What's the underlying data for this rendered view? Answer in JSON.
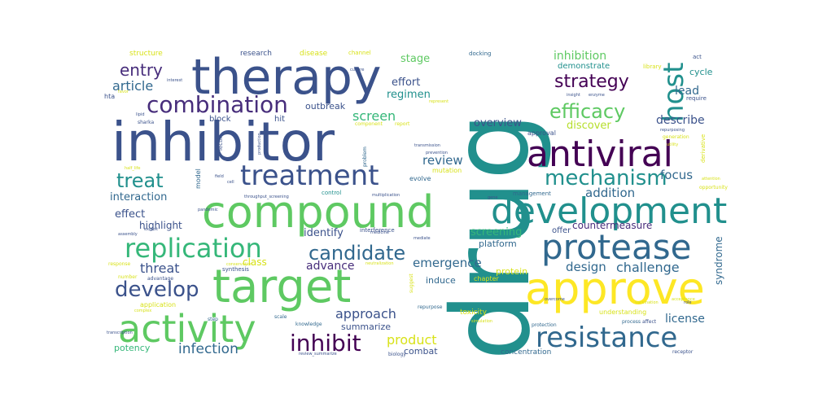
{
  "words": [
    {
      "text": "drug",
      "color": "#21908d",
      "vertical": true
    },
    {
      "text": "inhibitor",
      "color": "#3b528b"
    },
    {
      "text": "therapy",
      "color": "#3b528b"
    },
    {
      "text": "target",
      "color": "#5ec962"
    },
    {
      "text": "compound",
      "color": "#5ec962"
    },
    {
      "text": "development",
      "color": "#21908d"
    },
    {
      "text": "approve",
      "color": "#fde725"
    },
    {
      "text": "activity",
      "color": "#5ec962"
    },
    {
      "text": "antiviral",
      "color": "#440154"
    },
    {
      "text": "protease",
      "color": "#31688e"
    },
    {
      "text": "resistance",
      "color": "#31688e"
    },
    {
      "text": "treatment",
      "color": "#3b528b"
    },
    {
      "text": "replication",
      "color": "#35b779"
    },
    {
      "text": "combination",
      "color": "#472d7b"
    },
    {
      "text": "mechanism",
      "color": "#21908d"
    },
    {
      "text": "host",
      "color": "#21908d",
      "vertical": true
    },
    {
      "text": "strategy",
      "color": "#440154"
    },
    {
      "text": "efficacy",
      "color": "#5ec962"
    },
    {
      "text": "inhibit",
      "color": "#440154"
    },
    {
      "text": "candidate",
      "color": "#31688e"
    },
    {
      "text": "develop",
      "color": "#3b528b"
    },
    {
      "text": "treat",
      "color": "#21908d"
    },
    {
      "text": "entry",
      "color": "#472d7b"
    },
    {
      "text": "article",
      "color": "#31688e"
    },
    {
      "text": "review",
      "color": "#31688e"
    },
    {
      "text": "screen",
      "color": "#35b779"
    },
    {
      "text": "infection",
      "color": "#31688e"
    },
    {
      "text": "product",
      "color": "#d8e219"
    },
    {
      "text": "approach",
      "color": "#3b528b"
    },
    {
      "text": "emergence",
      "color": "#31688e"
    },
    {
      "text": "challenge",
      "color": "#31688e"
    },
    {
      "text": "design",
      "color": "#31688e"
    },
    {
      "text": "advance",
      "color": "#472d7b"
    },
    {
      "text": "threat",
      "color": "#3b528b"
    },
    {
      "text": "addition",
      "color": "#31688e"
    },
    {
      "text": "focus",
      "color": "#31688e"
    },
    {
      "text": "describe",
      "color": "#3b528b"
    },
    {
      "text": "lead",
      "color": "#31688e"
    },
    {
      "text": "license",
      "color": "#31688e"
    },
    {
      "text": "overview",
      "color": "#3b528b"
    },
    {
      "text": "discover",
      "color": "#b5de2b"
    },
    {
      "text": "effort",
      "color": "#3b528b"
    },
    {
      "text": "regimen",
      "color": "#21908d"
    },
    {
      "text": "stage",
      "color": "#5ec962"
    },
    {
      "text": "inhibition",
      "color": "#5ec962"
    },
    {
      "text": "interaction",
      "color": "#31688e"
    },
    {
      "text": "effect",
      "color": "#3b528b"
    },
    {
      "text": "highlight",
      "color": "#3b528b"
    },
    {
      "text": "identify",
      "color": "#3b528b"
    },
    {
      "text": "class",
      "color": "#d8e219"
    },
    {
      "text": "screening",
      "color": "#35b779"
    },
    {
      "text": "countermeasure",
      "color": "#472d7b"
    },
    {
      "text": "syndrome",
      "color": "#31688e",
      "vertical": true
    },
    {
      "text": "potency",
      "color": "#35b779"
    },
    {
      "text": "summarize",
      "color": "#3b528b"
    },
    {
      "text": "combat",
      "color": "#3b528b"
    },
    {
      "text": "induce",
      "color": "#31688e"
    },
    {
      "text": "protein",
      "color": "#d8e219"
    },
    {
      "text": "platform",
      "color": "#31688e"
    },
    {
      "text": "outbreak",
      "color": "#3b528b"
    },
    {
      "text": "cycle",
      "color": "#21908d"
    },
    {
      "text": "demonstrate",
      "color": "#21908d"
    },
    {
      "text": "offer",
      "color": "#3b528b"
    },
    {
      "text": "block",
      "color": "#3b528b"
    },
    {
      "text": "hit",
      "color": "#3b528b"
    },
    {
      "text": "structure",
      "color": "#d8e219"
    },
    {
      "text": "research",
      "color": "#3b528b"
    },
    {
      "text": "disease",
      "color": "#d8e219"
    },
    {
      "text": "channel",
      "color": "#d8e219"
    },
    {
      "text": "docking",
      "color": "#31688e"
    },
    {
      "text": "act",
      "color": "#3b528b"
    },
    {
      "text": "concentration",
      "color": "#31688e"
    },
    {
      "text": "approval",
      "color": "#3b528b"
    },
    {
      "text": "toxicity",
      "color": "#d8e219"
    },
    {
      "text": "mutation",
      "color": "#d8e219"
    },
    {
      "text": "evolve",
      "color": "#31688e"
    },
    {
      "text": "model",
      "color": "#31688e",
      "vertical": true
    },
    {
      "text": "control",
      "color": "#21908d"
    },
    {
      "text": "understanding",
      "color": "#d8e219"
    },
    {
      "text": "chapter",
      "color": "#d8e219"
    },
    {
      "text": "application",
      "color": "#d8e219"
    },
    {
      "text": "hta",
      "color": "#3b528b"
    },
    {
      "text": "management",
      "color": "#31688e"
    },
    {
      "text": "require",
      "color": "#3b528b"
    },
    {
      "text": "library",
      "color": "#d8e219"
    },
    {
      "text": "derivative",
      "color": "#d8e219",
      "vertical": true
    },
    {
      "text": "synthesis",
      "color": "#3b528b"
    },
    {
      "text": "interference",
      "color": "#3b528b"
    },
    {
      "text": "component",
      "color": "#d8e219"
    },
    {
      "text": "report",
      "color": "#d8e219"
    },
    {
      "text": "problem",
      "color": "#31688e",
      "vertical": true
    },
    {
      "text": "suggest",
      "color": "#d8e219",
      "vertical": true
    },
    {
      "text": "scale",
      "color": "#31688e"
    },
    {
      "text": "step",
      "color": "#31688e"
    },
    {
      "text": "knowledge",
      "color": "#31688e"
    },
    {
      "text": "repurpose",
      "color": "#31688e"
    },
    {
      "text": "biology",
      "color": "#3b528b"
    },
    {
      "text": "protection",
      "color": "#31688e"
    },
    {
      "text": "process",
      "color": "#31688e"
    },
    {
      "text": "affect",
      "color": "#3b528b"
    },
    {
      "text": "receptor",
      "color": "#3b528b"
    },
    {
      "text": "opportunity",
      "color": "#d8e219"
    },
    {
      "text": "generation",
      "color": "#d8e219"
    },
    {
      "text": "number",
      "color": "#d8e219"
    },
    {
      "text": "response",
      "color": "#d8e219"
    },
    {
      "text": "advantage",
      "color": "#3b528b"
    },
    {
      "text": "exhibit",
      "color": "#3b528b"
    },
    {
      "text": "assembly",
      "color": "#3b528b"
    },
    {
      "text": "pandemic",
      "color": "#3b528b"
    },
    {
      "text": "medicine",
      "color": "#3b528b"
    },
    {
      "text": "mediate",
      "color": "#3b528b"
    },
    {
      "text": "multiplication",
      "color": "#3b528b"
    },
    {
      "text": "throughput_screening",
      "color": "#3b528b"
    },
    {
      "text": "field",
      "color": "#3b528b"
    },
    {
      "text": "cell",
      "color": "#3b528b"
    },
    {
      "text": "lectin",
      "color": "#3b528b",
      "vertical": true
    },
    {
      "text": "production",
      "color": "#3b528b",
      "vertical": true
    },
    {
      "text": "prevention",
      "color": "#3b528b"
    },
    {
      "text": "utility",
      "color": "#d8e219"
    },
    {
      "text": "attention",
      "color": "#d8e219"
    },
    {
      "text": "repurposing",
      "color": "#3b528b"
    },
    {
      "text": "acceptance",
      "color": "#d8e219"
    },
    {
      "text": "vaccination",
      "color": "#d8e219"
    },
    {
      "text": "role",
      "color": "#3b528b"
    },
    {
      "text": "overcome",
      "color": "#3b528b"
    },
    {
      "text": "transcription",
      "color": "#3b528b"
    },
    {
      "text": "simulation",
      "color": "#d8e219"
    },
    {
      "text": "review_summarize",
      "color": "#3b528b"
    },
    {
      "text": "represent",
      "color": "#d8e219"
    },
    {
      "text": "insight",
      "color": "#3b528b"
    },
    {
      "text": "enzyme",
      "color": "#3b528b"
    },
    {
      "text": "sharka",
      "color": "#3b528b"
    },
    {
      "text": "favor",
      "color": "#d8e219"
    },
    {
      "text": "interest",
      "color": "#3b528b"
    },
    {
      "text": "culture",
      "color": "#3b528b"
    },
    {
      "text": "gene",
      "color": "#3b528b"
    },
    {
      "text": "lipid",
      "color": "#3b528b"
    },
    {
      "text": "conservation",
      "color": "#d8e219"
    },
    {
      "text": "neutralization",
      "color": "#d8e219"
    },
    {
      "text": "complex",
      "color": "#d8e219"
    },
    {
      "text": "transmission",
      "color": "#3b528b"
    },
    {
      "text": "half_life",
      "color": "#d8e219"
    }
  ]
}
